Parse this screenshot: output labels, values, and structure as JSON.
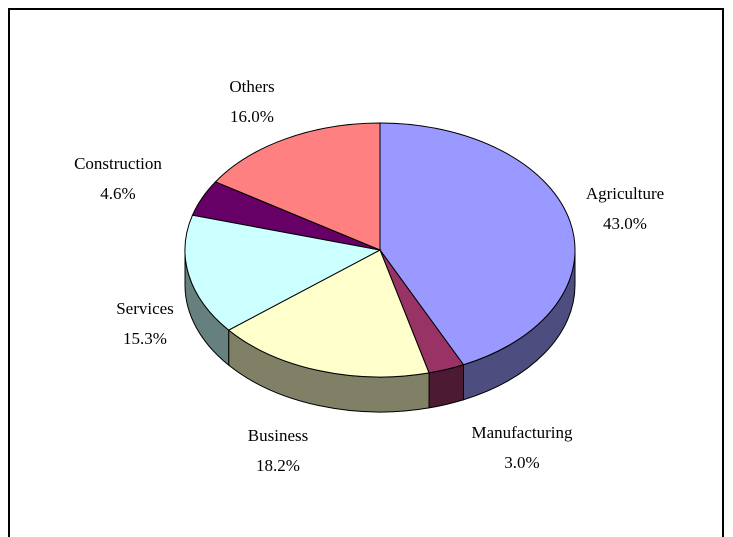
{
  "chart_data": {
    "type": "pie",
    "categories": [
      "Agriculture",
      "Manufacturing",
      "Business",
      "Services",
      "Construction",
      "Others"
    ],
    "values": [
      43.0,
      3.0,
      18.2,
      15.3,
      4.6,
      16.0
    ],
    "value_labels": [
      "43.0%",
      "3.0%",
      "18.2%",
      "15.3%",
      "4.6%",
      "16.0%"
    ],
    "colors": [
      "#9999ff",
      "#993366",
      "#ffffcc",
      "#ccffff",
      "#660066",
      "#ff8080"
    ]
  }
}
